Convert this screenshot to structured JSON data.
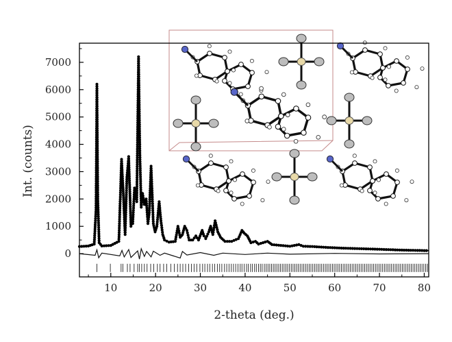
{
  "chart_data": {
    "type": "line",
    "title": "",
    "xlabel": "2-theta (deg.)",
    "ylabel": "Int. (counts)",
    "xlim": [
      3,
      81
    ],
    "ylim": [
      -850,
      7700
    ],
    "x_ticks": [
      "10",
      "20",
      "30",
      "40",
      "50",
      "60",
      "70",
      "80"
    ],
    "y_ticks": [
      "0",
      "1000",
      "2000",
      "3000",
      "4000",
      "5000",
      "6000",
      "7000"
    ],
    "grid": false,
    "legend": "none",
    "series": [
      {
        "role": "observed",
        "style": "dots",
        "x": [
          3,
          5,
          6.3,
          6.7,
          6.9,
          7.1,
          7.4,
          8,
          10,
          11.8,
          12.4,
          12.8,
          13.2,
          13.6,
          14,
          14.5,
          14.9,
          15.3,
          15.8,
          16.2,
          16.5,
          16.8,
          17.1,
          17.5,
          17.9,
          18.3,
          18.6,
          19,
          19.5,
          19.9,
          20.3,
          20.8,
          21.2,
          21.6,
          22,
          23,
          24.4,
          25,
          25.5,
          26,
          26.5,
          27,
          27.5,
          28.3,
          29,
          29.6,
          30.4,
          30.8,
          31.2,
          31.9,
          32.3,
          32.8,
          33.3,
          33.9,
          34.5,
          35.5,
          37,
          38.5,
          39.3,
          39.8,
          40.5,
          41.3,
          42.3,
          43,
          44,
          45,
          46,
          48,
          50,
          52,
          53,
          55,
          58,
          62,
          66,
          70,
          75,
          81
        ],
        "y": [
          260,
          280,
          350,
          1600,
          6200,
          2000,
          400,
          280,
          300,
          450,
          3450,
          2200,
          700,
          2800,
          3550,
          1000,
          1100,
          2400,
          1900,
          7200,
          3600,
          1700,
          2200,
          1800,
          2000,
          1100,
          1500,
          3200,
          1100,
          800,
          1000,
          1900,
          1200,
          700,
          500,
          420,
          450,
          1000,
          600,
          700,
          1000,
          850,
          500,
          500,
          650,
          500,
          850,
          650,
          550,
          800,
          1000,
          700,
          1200,
          800,
          600,
          450,
          450,
          550,
          850,
          750,
          650,
          400,
          450,
          350,
          400,
          450,
          330,
          300,
          270,
          330,
          270,
          260,
          230,
          200,
          180,
          160,
          130,
          110
        ]
      },
      {
        "role": "difference",
        "style": "line",
        "x": [
          3,
          6.5,
          6.9,
          7.3,
          8,
          12,
          12.5,
          13,
          14,
          14.5,
          16,
          16.4,
          16.8,
          17.5,
          18,
          19,
          19.5,
          21,
          22,
          25.5,
          26,
          27,
          30,
          33,
          35,
          40,
          45,
          50,
          60,
          70,
          81
        ],
        "y": [
          0,
          -60,
          140,
          -150,
          20,
          -80,
          120,
          -120,
          150,
          -140,
          100,
          -200,
          180,
          -100,
          80,
          -120,
          90,
          -60,
          20,
          -160,
          80,
          -50,
          40,
          -60,
          20,
          -30,
          20,
          -20,
          10,
          -10,
          0
        ]
      },
      {
        "role": "bragg-reflections",
        "style": "ticks",
        "y_level": -520,
        "positions": [
          6.9,
          9.9,
          12.3,
          12.7,
          13.7,
          14.3,
          15.2,
          16.0,
          16.4,
          16.9,
          17.5,
          18.1,
          18.9,
          19.6,
          20.4,
          21.0,
          21.8,
          22.5,
          23.4,
          24.2,
          24.9,
          25.5,
          26.1,
          26.7,
          27.4,
          28.0,
          28.6,
          29.2,
          29.9,
          30.5,
          31.0,
          31.6,
          32.1,
          32.7,
          33.2,
          33.8,
          34.3,
          34.8,
          35.4,
          35.9,
          36.4,
          36.9,
          37.4,
          37.9,
          38.4,
          38.9,
          39.3,
          39.8,
          40.3,
          40.7,
          41.2,
          41.6,
          42.1,
          42.5,
          43.0,
          43.4,
          43.8,
          44.3,
          44.7,
          45.1,
          45.5,
          45.9,
          46.3,
          46.7,
          47.1,
          47.5,
          47.9,
          48.3,
          48.7,
          49.1,
          49.5,
          49.9,
          50.3,
          50.7,
          51.1,
          51.5,
          51.9,
          52.3,
          52.7,
          53.1,
          53.5,
          53.9,
          54.3,
          54.7,
          55.1,
          55.5,
          55.9,
          56.3,
          56.7,
          57.1,
          57.5,
          57.9,
          58.3,
          58.7,
          59.1,
          59.5,
          59.9,
          60.3,
          60.7,
          61.1,
          61.5,
          61.9,
          62.3,
          62.7,
          63.1,
          63.5,
          63.9,
          64.3,
          64.7,
          65.1,
          65.5,
          65.9,
          66.3,
          66.7,
          67.1,
          67.5,
          67.9,
          68.3,
          68.7,
          69.1,
          69.5,
          69.9,
          70.3,
          70.7,
          71.1,
          71.5,
          71.9,
          72.3,
          72.7,
          73.1,
          73.5,
          73.9,
          74.3,
          74.7,
          75.1,
          75.5,
          75.9,
          76.3,
          76.7,
          77.1,
          77.5,
          77.9,
          78.3,
          78.7,
          79.1,
          79.5,
          79.9,
          80.3,
          80.7
        ]
      }
    ],
    "inset": {
      "kind": "crystal structure packing image",
      "cell_edge_color": "#c48a8a",
      "atom_colors": {
        "N": "#5866c9",
        "metal": "#e8d9a8",
        "halogen": "#bdbdbd",
        "C": "#ffffff"
      }
    }
  }
}
